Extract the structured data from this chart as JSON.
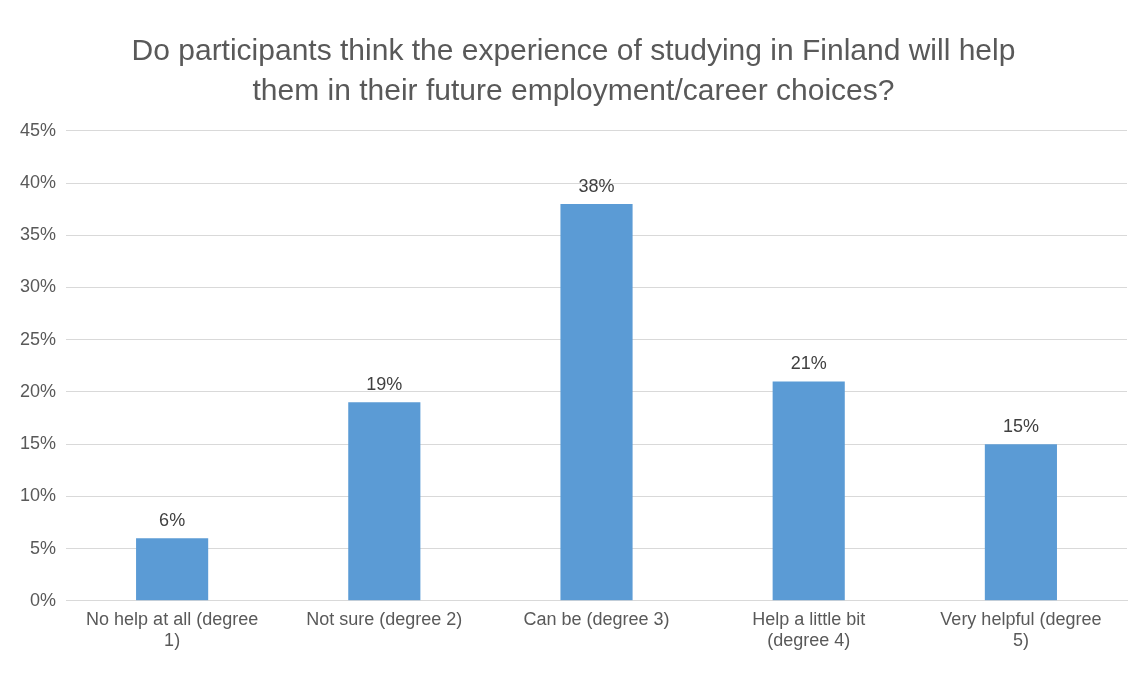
{
  "chart_data": {
    "type": "bar",
    "title": "Do participants think the experience of studying in Finland will help them in their future employment/career choices?",
    "categories": [
      "No help at all (degree 1)",
      "Not sure (degree 2)",
      "Can be (degree 3)",
      "Help a little bit (degree 4)",
      "Very helpful (degree 5)"
    ],
    "values": [
      6,
      19,
      38,
      21,
      15
    ],
    "value_labels": [
      "6%",
      "19%",
      "38%",
      "21%",
      "15%"
    ],
    "color": "#5b9bd5",
    "ylim": [
      0,
      45
    ],
    "yticks": [
      {
        "value": 0,
        "label": "0%"
      },
      {
        "value": 5,
        "label": "5%"
      },
      {
        "value": 10,
        "label": "10%"
      },
      {
        "value": 15,
        "label": "15%"
      },
      {
        "value": 20,
        "label": "20%"
      },
      {
        "value": 25,
        "label": "25%"
      },
      {
        "value": 30,
        "label": "30%"
      },
      {
        "value": 35,
        "label": "35%"
      },
      {
        "value": 40,
        "label": "40%"
      },
      {
        "value": 45,
        "label": "45%"
      }
    ],
    "grid": "y"
  }
}
